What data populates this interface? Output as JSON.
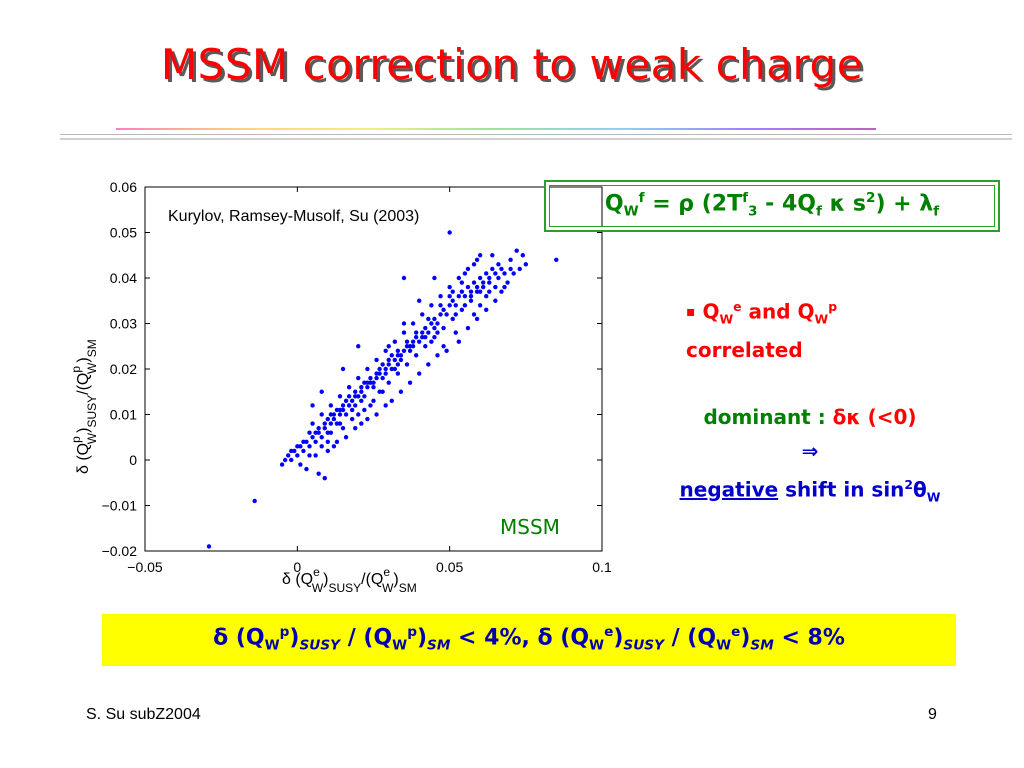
{
  "title": "MSSM correction to weak charge",
  "colors": {
    "title": "#ff0000",
    "equation": "#008000",
    "points": "#0000ff",
    "highlight": "#ffff00",
    "text_blue": "#0000cc"
  },
  "equation": {
    "p1": "Q",
    "p2": "W",
    "p3": "f",
    "p4": " = ρ (2T",
    "p5": "f",
    "p6": "3",
    "p7": " - 4Q",
    "p8": "f",
    "p9": " κ s",
    "p10": "2",
    "p11": ") + λ",
    "p12": "f"
  },
  "bullet": {
    "mark": "▪",
    "a1": "Q",
    "a2": "W",
    "a3": "e",
    "a4": " and Q",
    "a5": "W",
    "a6": "p",
    "line2": "correlated"
  },
  "dominant": {
    "label": "dominant : ",
    "symbol": "δκ (<0)",
    "arrow": "⇒",
    "neg": "negative",
    "rest": " shift in sin",
    "sup": "2",
    "theta": "θ",
    "sub": "W"
  },
  "result": {
    "s1": "δ (Q",
    "s2": "W",
    "s3": "p",
    "s4": ")",
    "s5": "SUSY",
    "s6": " / (Q",
    "s7": "W",
    "s8": "p",
    "s9": ")",
    "s10": "SM",
    "s11": " < 4%, δ (Q",
    "s12": "W",
    "s13": "e",
    "s14": ")",
    "s15": "SUSY",
    "s16": " / (Q",
    "s17": "W",
    "s18": "e",
    "s19": ")",
    "s20": "SM",
    "s21": " < 8%"
  },
  "footer": {
    "left": "S. Su  subZ2004",
    "right": "9"
  },
  "chart_data": {
    "type": "scatter",
    "citation": "Kurylov, Ramsey-Musolf, Su (2003)",
    "annotation": "MSSM",
    "xlabel": {
      "a": "δ (Q",
      "b": "e",
      "c": "W",
      "d": ")",
      "e": "SUSY",
      "f": "/(Q",
      "g": "e",
      "h": "W",
      "i": ")",
      "j": "SM"
    },
    "ylabel": {
      "a": "δ (Q",
      "b": "p",
      "c": "W",
      "d": ")",
      "e": "SUSY",
      "f": "/(Q",
      "g": "p",
      "h": "W",
      "i": ")",
      "j": "SM"
    },
    "xlim": [
      -0.05,
      0.1
    ],
    "ylim": [
      -0.02,
      0.06
    ],
    "xticks": [
      -0.05,
      0,
      0.05,
      0.1
    ],
    "xtick_labels": [
      "−0.05",
      "0",
      "0.05",
      "0.1"
    ],
    "yticks": [
      -0.02,
      -0.01,
      0,
      0.01,
      0.02,
      0.03,
      0.04,
      0.05,
      0.06
    ],
    "ytick_labels": [
      "−0.02",
      "−0.01",
      "0",
      "0.01",
      "0.02",
      "0.03",
      "0.04",
      "0.05",
      "0.06"
    ],
    "grid": false,
    "points": [
      [
        -0.029,
        -0.019
      ],
      [
        -0.014,
        -0.009
      ],
      [
        -0.005,
        -0.001
      ],
      [
        -0.004,
        0.0
      ],
      [
        -0.003,
        0.001
      ],
      [
        -0.002,
        0.0
      ],
      [
        -0.001,
        0.002
      ],
      [
        0.0,
        0.001
      ],
      [
        0.001,
        0.003
      ],
      [
        0.002,
        0.002
      ],
      [
        0.003,
        0.004
      ],
      [
        0.004,
        0.003
      ],
      [
        0.005,
        0.005
      ],
      [
        0.006,
        0.004
      ],
      [
        0.007,
        0.006
      ],
      [
        0.008,
        0.005
      ],
      [
        0.009,
        0.007
      ],
      [
        0.01,
        0.006
      ],
      [
        0.011,
        0.008
      ],
      [
        0.012,
        0.009
      ],
      [
        0.013,
        0.008
      ],
      [
        0.014,
        0.01
      ],
      [
        0.015,
        0.011
      ],
      [
        0.016,
        0.01
      ],
      [
        0.017,
        0.012
      ],
      [
        0.018,
        0.013
      ],
      [
        0.019,
        0.012
      ],
      [
        0.02,
        0.014
      ],
      [
        0.021,
        0.015
      ],
      [
        0.022,
        0.014
      ],
      [
        0.023,
        0.016
      ],
      [
        0.024,
        0.017
      ],
      [
        0.025,
        0.016
      ],
      [
        0.026,
        0.018
      ],
      [
        0.027,
        0.019
      ],
      [
        0.028,
        0.018
      ],
      [
        0.029,
        0.02
      ],
      [
        0.03,
        0.021
      ],
      [
        0.031,
        0.02
      ],
      [
        0.032,
        0.022
      ],
      [
        0.033,
        0.023
      ],
      [
        0.034,
        0.022
      ],
      [
        0.035,
        0.024
      ],
      [
        0.036,
        0.025
      ],
      [
        0.037,
        0.024
      ],
      [
        0.038,
        0.026
      ],
      [
        0.039,
        0.027
      ],
      [
        0.04,
        0.026
      ],
      [
        0.041,
        0.028
      ],
      [
        0.042,
        0.029
      ],
      [
        0.043,
        0.028
      ],
      [
        0.044,
        0.03
      ],
      [
        0.045,
        0.031
      ],
      [
        0.046,
        0.03
      ],
      [
        0.047,
        0.032
      ],
      [
        0.048,
        0.033
      ],
      [
        0.049,
        0.032
      ],
      [
        0.05,
        0.034
      ],
      [
        0.051,
        0.035
      ],
      [
        0.052,
        0.034
      ],
      [
        0.053,
        0.036
      ],
      [
        0.054,
        0.037
      ],
      [
        0.055,
        0.036
      ],
      [
        0.056,
        0.038
      ],
      [
        0.057,
        0.037
      ],
      [
        0.058,
        0.039
      ],
      [
        0.059,
        0.038
      ],
      [
        0.06,
        0.04
      ],
      [
        0.061,
        0.039
      ],
      [
        0.062,
        0.041
      ],
      [
        0.063,
        0.04
      ],
      [
        0.064,
        0.042
      ],
      [
        0.01,
        0.004
      ],
      [
        0.012,
        0.003
      ],
      [
        0.015,
        0.007
      ],
      [
        0.018,
        0.009
      ],
      [
        0.02,
        0.01
      ],
      [
        0.022,
        0.011
      ],
      [
        0.025,
        0.013
      ],
      [
        0.028,
        0.015
      ],
      [
        0.03,
        0.017
      ],
      [
        0.033,
        0.019
      ],
      [
        0.036,
        0.021
      ],
      [
        0.039,
        0.023
      ],
      [
        0.042,
        0.025
      ],
      [
        0.045,
        0.027
      ],
      [
        0.048,
        0.029
      ],
      [
        0.051,
        0.031
      ],
      [
        0.054,
        0.033
      ],
      [
        0.057,
        0.035
      ],
      [
        0.06,
        0.037
      ],
      [
        0.005,
        0.008
      ],
      [
        0.008,
        0.01
      ],
      [
        0.011,
        0.012
      ],
      [
        0.014,
        0.014
      ],
      [
        0.017,
        0.016
      ],
      [
        0.02,
        0.018
      ],
      [
        0.023,
        0.02
      ],
      [
        0.026,
        0.022
      ],
      [
        0.029,
        0.024
      ],
      [
        0.032,
        0.026
      ],
      [
        0.035,
        0.028
      ],
      [
        0.038,
        0.03
      ],
      [
        0.041,
        0.032
      ],
      [
        0.044,
        0.034
      ],
      [
        0.047,
        0.036
      ],
      [
        0.05,
        0.038
      ],
      [
        0.053,
        0.04
      ],
      [
        0.056,
        0.042
      ],
      [
        0.059,
        0.044
      ],
      [
        0.03,
        0.025
      ],
      [
        0.032,
        0.02
      ],
      [
        0.027,
        0.015
      ],
      [
        0.024,
        0.012
      ],
      [
        0.035,
        0.03
      ],
      [
        0.04,
        0.035
      ],
      [
        0.045,
        0.04
      ],
      [
        0.05,
        0.036
      ],
      [
        0.055,
        0.041
      ],
      [
        0.048,
        0.025
      ],
      [
        0.052,
        0.028
      ],
      [
        0.058,
        0.032
      ],
      [
        0.062,
        0.036
      ],
      [
        0.066,
        0.04
      ],
      [
        0.07,
        0.044
      ],
      [
        0.075,
        0.043
      ],
      [
        0.085,
        0.044
      ],
      [
        0.068,
        0.038
      ],
      [
        0.066,
        0.043
      ],
      [
        0.064,
        0.045
      ],
      [
        0.06,
        0.045
      ],
      [
        0.072,
        0.046
      ],
      [
        0.05,
        0.05
      ],
      [
        0.035,
        0.04
      ],
      [
        0.02,
        0.025
      ],
      [
        0.015,
        0.02
      ],
      [
        0.008,
        0.015
      ],
      [
        0.005,
        0.012
      ],
      [
        0.01,
        0.002
      ],
      [
        0.006,
        0.001
      ],
      [
        0.003,
        -0.002
      ],
      [
        0.007,
        -0.003
      ],
      [
        0.009,
        -0.004
      ],
      [
        0.013,
        0.004
      ],
      [
        0.016,
        0.005
      ],
      [
        0.019,
        0.007
      ],
      [
        0.021,
        0.008
      ],
      [
        0.023,
        0.009
      ],
      [
        0.026,
        0.01
      ],
      [
        0.029,
        0.012
      ],
      [
        0.031,
        0.013
      ],
      [
        0.034,
        0.015
      ],
      [
        0.037,
        0.017
      ],
      [
        0.04,
        0.019
      ],
      [
        0.043,
        0.021
      ],
      [
        0.046,
        0.023
      ],
      [
        0.049,
        0.024
      ],
      [
        0.053,
        0.026
      ],
      [
        0.056,
        0.029
      ],
      [
        0.059,
        0.031
      ],
      [
        0.062,
        0.033
      ],
      [
        0.065,
        0.035
      ],
      [
        0.067,
        0.037
      ],
      [
        0.069,
        0.039
      ],
      [
        0.071,
        0.041
      ],
      [
        0.073,
        0.042
      ],
      [
        0.074,
        0.045
      ],
      [
        0.058,
        0.043
      ],
      [
        0.054,
        0.039
      ],
      [
        0.051,
        0.037
      ],
      [
        0.047,
        0.034
      ],
      [
        0.043,
        0.031
      ],
      [
        0.039,
        0.028
      ],
      [
        0.036,
        0.026
      ],
      [
        0.033,
        0.024
      ],
      [
        0.031,
        0.023
      ],
      [
        0.028,
        0.021
      ],
      [
        0.026,
        0.019
      ],
      [
        0.023,
        0.017
      ],
      [
        0.021,
        0.016
      ],
      [
        0.019,
        0.014
      ],
      [
        0.016,
        0.013
      ],
      [
        0.014,
        0.011
      ],
      [
        0.012,
        0.01
      ],
      [
        0.01,
        0.009
      ],
      [
        0.007,
        0.007
      ],
      [
        0.004,
        0.006
      ],
      [
        0.002,
        0.004
      ],
      [
        0.0,
        0.003
      ],
      [
        -0.002,
        0.002
      ],
      [
        0.001,
        -0.001
      ],
      [
        0.004,
        0.001
      ],
      [
        0.044,
        0.026
      ],
      [
        0.046,
        0.028
      ],
      [
        0.042,
        0.027
      ],
      [
        0.038,
        0.025
      ],
      [
        0.034,
        0.023
      ],
      [
        0.03,
        0.022
      ],
      [
        0.027,
        0.02
      ],
      [
        0.024,
        0.018
      ],
      [
        0.022,
        0.017
      ],
      [
        0.019,
        0.015
      ],
      [
        0.017,
        0.014
      ],
      [
        0.015,
        0.012
      ],
      [
        0.013,
        0.011
      ],
      [
        0.011,
        0.01
      ],
      [
        0.009,
        0.008
      ],
      [
        0.006,
        0.006
      ],
      [
        0.052,
        0.032
      ],
      [
        0.055,
        0.034
      ],
      [
        0.057,
        0.036
      ],
      [
        0.059,
        0.037
      ],
      [
        0.061,
        0.038
      ],
      [
        0.063,
        0.039
      ],
      [
        0.065,
        0.041
      ],
      [
        0.067,
        0.042
      ],
      [
        0.06,
        0.034
      ],
      [
        0.063,
        0.037
      ],
      [
        0.065,
        0.038
      ],
      [
        0.068,
        0.041
      ],
      [
        0.07,
        0.042
      ],
      [
        0.045,
        0.029
      ],
      [
        0.041,
        0.027
      ],
      [
        0.037,
        0.025
      ],
      [
        0.033,
        0.021
      ],
      [
        0.029,
        0.019
      ],
      [
        0.025,
        0.017
      ],
      [
        0.021,
        0.013
      ],
      [
        0.018,
        0.011
      ],
      [
        0.014,
        0.008
      ],
      [
        0.011,
        0.006
      ],
      [
        0.008,
        0.003
      ]
    ]
  }
}
